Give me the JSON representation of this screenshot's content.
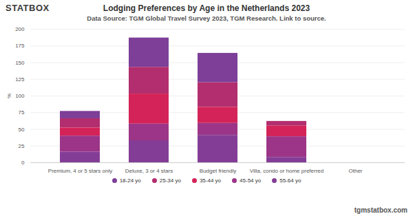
{
  "chart_data": {
    "type": "bar",
    "title": "Lodging Preferences by Age in the Netherlands 2023",
    "subtitle": "Data Source: TGM Global Travel Survey 2023, TGM Research. Link to source.",
    "brand": "STATBOX",
    "caption": "tgmstatbox.com",
    "y_label": "%",
    "categories": [
      "Premium, 4 or 5 stars only",
      "Deluxe, 3 or 4 stars",
      "Budget friendly",
      "Villa, condo or home preferred",
      "Other"
    ],
    "series": [
      {
        "name": "18-24 yo",
        "color": "#7d3f98",
        "values": [
          11,
          44,
          44,
          0,
          0
        ]
      },
      {
        "name": "25-34 yo",
        "color": "#b22e6e",
        "values": [
          14,
          40,
          37,
          7,
          0
        ]
      },
      {
        "name": "35-44 yo",
        "color": "#d42358",
        "values": [
          12,
          45,
          24,
          16,
          0
        ]
      },
      {
        "name": "45-54 yo",
        "color": "#9c3588",
        "values": [
          24,
          25,
          18,
          31,
          0
        ]
      },
      {
        "name": "55-64 yo",
        "color": "#843d96",
        "values": [
          16,
          33,
          41,
          8,
          0
        ]
      }
    ],
    "stacked": true,
    "ylim": [
      0,
      200
    ],
    "yticks": [
      0,
      25,
      50,
      75,
      100,
      125,
      150,
      175,
      200
    ],
    "grid": true,
    "legend": "bottom"
  }
}
